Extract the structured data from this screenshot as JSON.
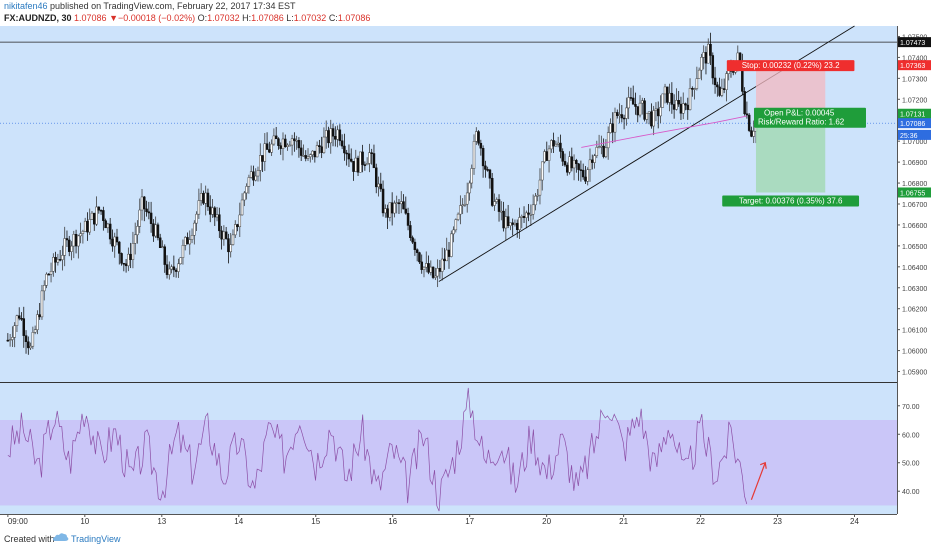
{
  "header": {
    "user": "nikitafen46",
    "published": " published on TradingView.com, February 22, 2017 17:34 EST",
    "symbol": "FX:AUDNZD, 30",
    "last": "1.07086",
    "change": "−0.00018 (−0.02%)",
    "open_label": "O:",
    "open": "1.07032",
    "high_label": "H:",
    "high": "1.07086",
    "low_label": "L:",
    "low": "1.07032",
    "close_label": "C:",
    "close": "1.07086"
  },
  "footer": {
    "created": "Created with",
    "brand": "TradingView"
  },
  "colors": {
    "up": "#3e3e3e",
    "down": "#111111",
    "background": "#cde3fb",
    "stop": "#ef2e2e",
    "target": "#1f9d3a",
    "sma": "#d85ac8",
    "rsi_line": "#8c4fa6",
    "rsi_band": "#c9c1f7",
    "price_marker": "#2e6de0"
  },
  "chart_data": [
    {
      "type": "candlestick",
      "title": "FX:AUDNZD, 30",
      "ylim": [
        1.0585,
        1.0755
      ],
      "y_ticks": [
        "1.07500",
        "1.07400",
        "1.07300",
        "1.07200",
        "1.07100",
        "1.07000",
        "1.06900",
        "1.06800",
        "1.06700",
        "1.06600",
        "1.06500",
        "1.06400",
        "1.06300",
        "1.06200",
        "1.06100",
        "1.06000",
        "1.05900"
      ],
      "x_ticks": [
        {
          "label": "09:00",
          "x": 0
        },
        {
          "label": "10",
          "x": 1
        },
        {
          "label": "13",
          "x": 2
        },
        {
          "label": "14",
          "x": 3
        },
        {
          "label": "15",
          "x": 4
        },
        {
          "label": "16",
          "x": 5
        },
        {
          "label": "17",
          "x": 6
        },
        {
          "label": "20",
          "x": 7
        },
        {
          "label": "21",
          "x": 8
        },
        {
          "label": "22",
          "x": 9
        },
        {
          "label": "23",
          "x": 10
        },
        {
          "label": "24",
          "x": 11
        }
      ],
      "x_range": [
        -0.05,
        11.5
      ],
      "price_path": [
        [
          0.0,
          1.0605
        ],
        [
          0.15,
          1.0618
        ],
        [
          0.3,
          1.06
        ],
        [
          0.5,
          1.0635
        ],
        [
          0.75,
          1.065
        ],
        [
          1.0,
          1.0658
        ],
        [
          1.2,
          1.0668
        ],
        [
          1.35,
          1.0655
        ],
        [
          1.55,
          1.064
        ],
        [
          1.75,
          1.067
        ],
        [
          1.9,
          1.0658
        ],
        [
          2.1,
          1.0635
        ],
        [
          2.3,
          1.065
        ],
        [
          2.55,
          1.0675
        ],
        [
          2.7,
          1.0662
        ],
        [
          2.9,
          1.0648
        ],
        [
          3.1,
          1.068
        ],
        [
          3.3,
          1.0693
        ],
        [
          3.5,
          1.07
        ],
        [
          3.7,
          1.0702
        ],
        [
          3.9,
          1.069
        ],
        [
          4.1,
          1.07
        ],
        [
          4.3,
          1.0705
        ],
        [
          4.5,
          1.0688
        ],
        [
          4.7,
          1.0694
        ],
        [
          4.9,
          1.0665
        ],
        [
          5.1,
          1.067
        ],
        [
          5.25,
          1.0655
        ],
        [
          5.4,
          1.064
        ],
        [
          5.55,
          1.0634
        ],
        [
          5.75,
          1.065
        ],
        [
          5.95,
          1.0675
        ],
        [
          6.1,
          1.0705
        ],
        [
          6.3,
          1.0672
        ],
        [
          6.5,
          1.0658
        ],
        [
          6.7,
          1.0663
        ],
        [
          6.85,
          1.0672
        ],
        [
          7.0,
          1.0695
        ],
        [
          7.1,
          1.07
        ],
        [
          7.25,
          1.069
        ],
        [
          7.4,
          1.0685
        ],
        [
          7.5,
          1.0684
        ],
        [
          7.6,
          1.0695
        ],
        [
          7.75,
          1.0697
        ],
        [
          7.9,
          1.0712
        ],
        [
          8.1,
          1.0718
        ],
        [
          8.25,
          1.0715
        ],
        [
          8.4,
          1.071
        ],
        [
          8.55,
          1.0723
        ],
        [
          8.7,
          1.0715
        ],
        [
          8.85,
          1.072
        ],
        [
          9.0,
          1.0738
        ],
        [
          9.1,
          1.0742
        ],
        [
          9.25,
          1.072
        ],
        [
          9.4,
          1.0735
        ],
        [
          9.5,
          1.074
        ],
        [
          9.58,
          1.0715
        ],
        [
          9.66,
          1.0705
        ],
        [
          9.72,
          1.071
        ]
      ],
      "trendline": [
        [
          5.6,
          1.0633
        ],
        [
          11.0,
          1.0755
        ]
      ],
      "sma_path": [
        [
          7.45,
          1.0697
        ],
        [
          8.3,
          1.0703
        ],
        [
          9.2,
          1.0709
        ],
        [
          9.6,
          1.0712
        ]
      ],
      "resistance_level": 1.07473,
      "current_level": 1.07086,
      "price_labels": [
        {
          "text": "1.07473",
          "value": 1.07473,
          "color": "#111111"
        },
        {
          "text": "1.07363",
          "value": 1.07363,
          "color": "#ef2e2e"
        },
        {
          "text": "1.07131",
          "value": 1.07131,
          "color": "#1f9d3a"
        },
        {
          "text": "1.07086",
          "value": 1.07086,
          "color": "#2e6de0"
        },
        {
          "text": "25:36",
          "value": 1.0703,
          "color": "#2e6de0"
        },
        {
          "text": "1.06755",
          "value": 1.06755,
          "color": "#1f9d3a"
        }
      ],
      "position": {
        "entry": 1.07131,
        "stop": 1.07363,
        "target": 1.06755,
        "x_start": 9.72,
        "x_end": 10.62,
        "stop_text": "Stop: 0.00232 (0.22%) 23.2",
        "pnl_text": "Open P&L: 0.00045",
        "rr_text": "Risk/Reward Ratio: 1.62",
        "target_text": "Target: 0.00376 (0.35%) 37.6"
      }
    },
    {
      "type": "line",
      "title": "RSI",
      "ylim": [
        32,
        78
      ],
      "y_ticks": [
        "70.00",
        "60.00",
        "50.00",
        "40.00"
      ],
      "band": [
        35,
        65
      ],
      "rsi_path": [
        [
          0.0,
          55
        ],
        [
          0.2,
          62
        ],
        [
          0.4,
          48
        ],
        [
          0.6,
          67
        ],
        [
          0.8,
          50
        ],
        [
          1.0,
          70
        ],
        [
          1.2,
          52
        ],
        [
          1.4,
          61
        ],
        [
          1.6,
          44
        ],
        [
          1.8,
          56
        ],
        [
          2.0,
          40
        ],
        [
          2.2,
          60
        ],
        [
          2.4,
          48
        ],
        [
          2.6,
          63
        ],
        [
          2.8,
          45
        ],
        [
          3.0,
          58
        ],
        [
          3.2,
          40
        ],
        [
          3.4,
          62
        ],
        [
          3.6,
          52
        ],
        [
          3.8,
          68
        ],
        [
          4.0,
          50
        ],
        [
          4.2,
          63
        ],
        [
          4.4,
          44
        ],
        [
          4.6,
          61
        ],
        [
          4.8,
          40
        ],
        [
          5.0,
          55
        ],
        [
          5.2,
          42
        ],
        [
          5.4,
          60
        ],
        [
          5.6,
          38
        ],
        [
          5.8,
          52
        ],
        [
          6.0,
          72
        ],
        [
          6.2,
          50
        ],
        [
          6.4,
          58
        ],
        [
          6.6,
          42
        ],
        [
          6.8,
          60
        ],
        [
          7.0,
          46
        ],
        [
          7.2,
          58
        ],
        [
          7.4,
          40
        ],
        [
          7.6,
          55
        ],
        [
          7.8,
          73
        ],
        [
          8.0,
          55
        ],
        [
          8.2,
          68
        ],
        [
          8.4,
          48
        ],
        [
          8.6,
          65
        ],
        [
          8.8,
          44
        ],
        [
          9.0,
          62
        ],
        [
          9.2,
          46
        ],
        [
          9.4,
          60
        ],
        [
          9.6,
          40
        ]
      ],
      "arrow": [
        [
          9.66,
          37
        ],
        [
          9.84,
          50
        ]
      ]
    }
  ]
}
